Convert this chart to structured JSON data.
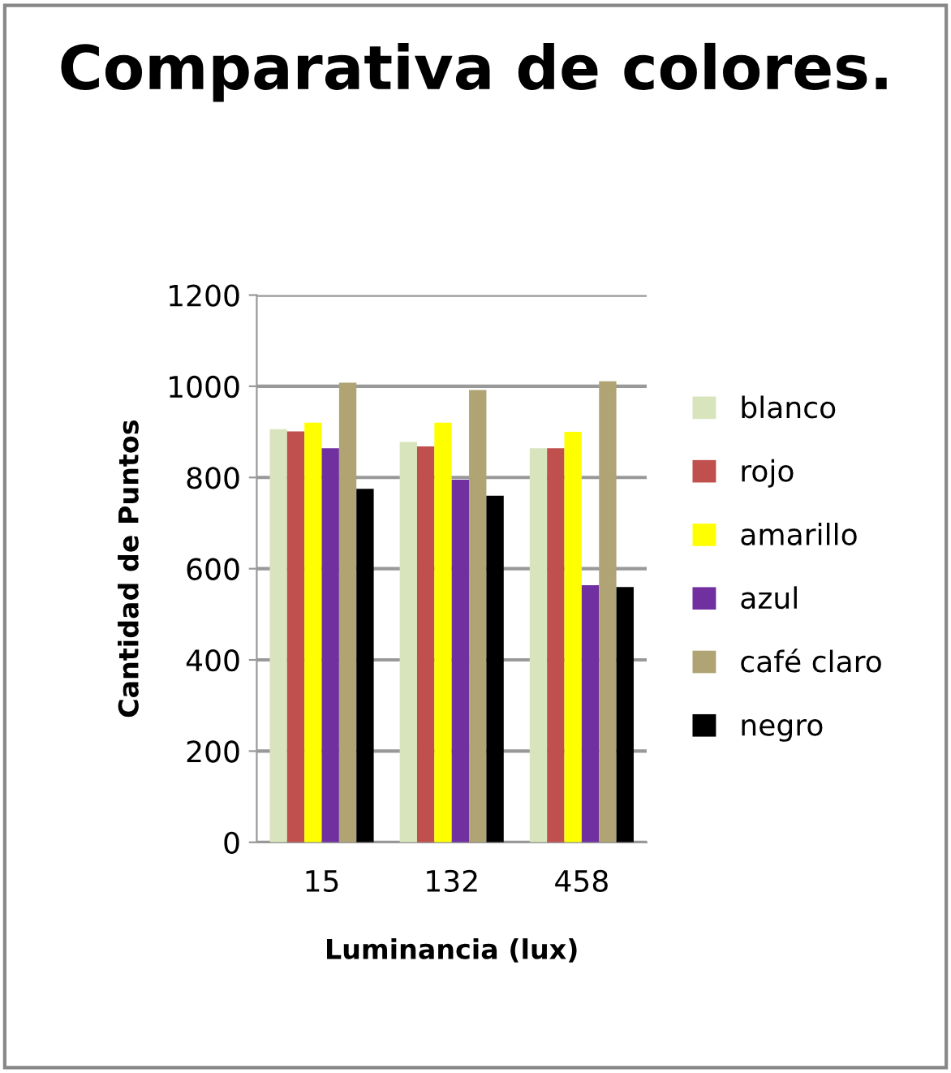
{
  "chart_data": {
    "type": "bar",
    "title": "Comparativa de colores.",
    "xlabel": "Luminancia (lux)",
    "ylabel": "Cantidad de Puntos",
    "categories": [
      "15",
      "132",
      "458"
    ],
    "series": [
      {
        "name": "blanco",
        "color": "#d8e4bc",
        "values": [
          906,
          878,
          864
        ]
      },
      {
        "name": "rojo",
        "color": "#c0504d",
        "values": [
          901,
          868,
          864
        ]
      },
      {
        "name": "amarillo",
        "color": "#ffff00",
        "values": [
          920,
          920,
          900
        ]
      },
      {
        "name": "azul",
        "color": "#7030a0",
        "values": [
          864,
          795,
          564
        ]
      },
      {
        "name": "café claro",
        "color": "#b0a474",
        "values": [
          1008,
          992,
          1011
        ]
      },
      {
        "name": "negro",
        "color": "#000000",
        "values": [
          775,
          760,
          560
        ]
      }
    ],
    "ylim": [
      0,
      1200
    ],
    "yticks": [
      0,
      200,
      400,
      600,
      800,
      1000,
      1200
    ],
    "grid": "y",
    "legend": "right"
  }
}
